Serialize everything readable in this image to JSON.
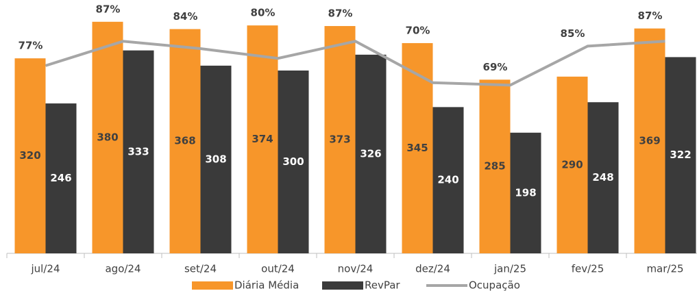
{
  "chart_data": {
    "type": "bar_line",
    "categories": [
      "jul/24",
      "ago/24",
      "set/24",
      "out/24",
      "nov/24",
      "dez/24",
      "jan/25",
      "fev/25",
      "mar/25"
    ],
    "series": [
      {
        "name": "Diária Média",
        "type": "bar",
        "color": "#f7962a",
        "values": [
          320,
          380,
          368,
          374,
          373,
          345,
          285,
          290,
          369
        ]
      },
      {
        "name": "RevPar",
        "type": "bar",
        "color": "#3a3a3a",
        "values": [
          246,
          333,
          308,
          300,
          326,
          240,
          198,
          248,
          322
        ]
      },
      {
        "name": "Ocupação",
        "type": "line",
        "axis": "y2",
        "color": "#a6a6a6",
        "values": [
          77,
          87,
          84,
          80,
          87,
          70,
          69,
          85,
          87
        ],
        "value_labels": [
          "77%",
          "87%",
          "84%",
          "80%",
          "87%",
          "70%",
          "69%",
          "85%",
          "87%"
        ]
      }
    ],
    "ylim": [
      0,
      400
    ],
    "y2lim": [
      0,
      100
    ],
    "legend": "bottom"
  }
}
